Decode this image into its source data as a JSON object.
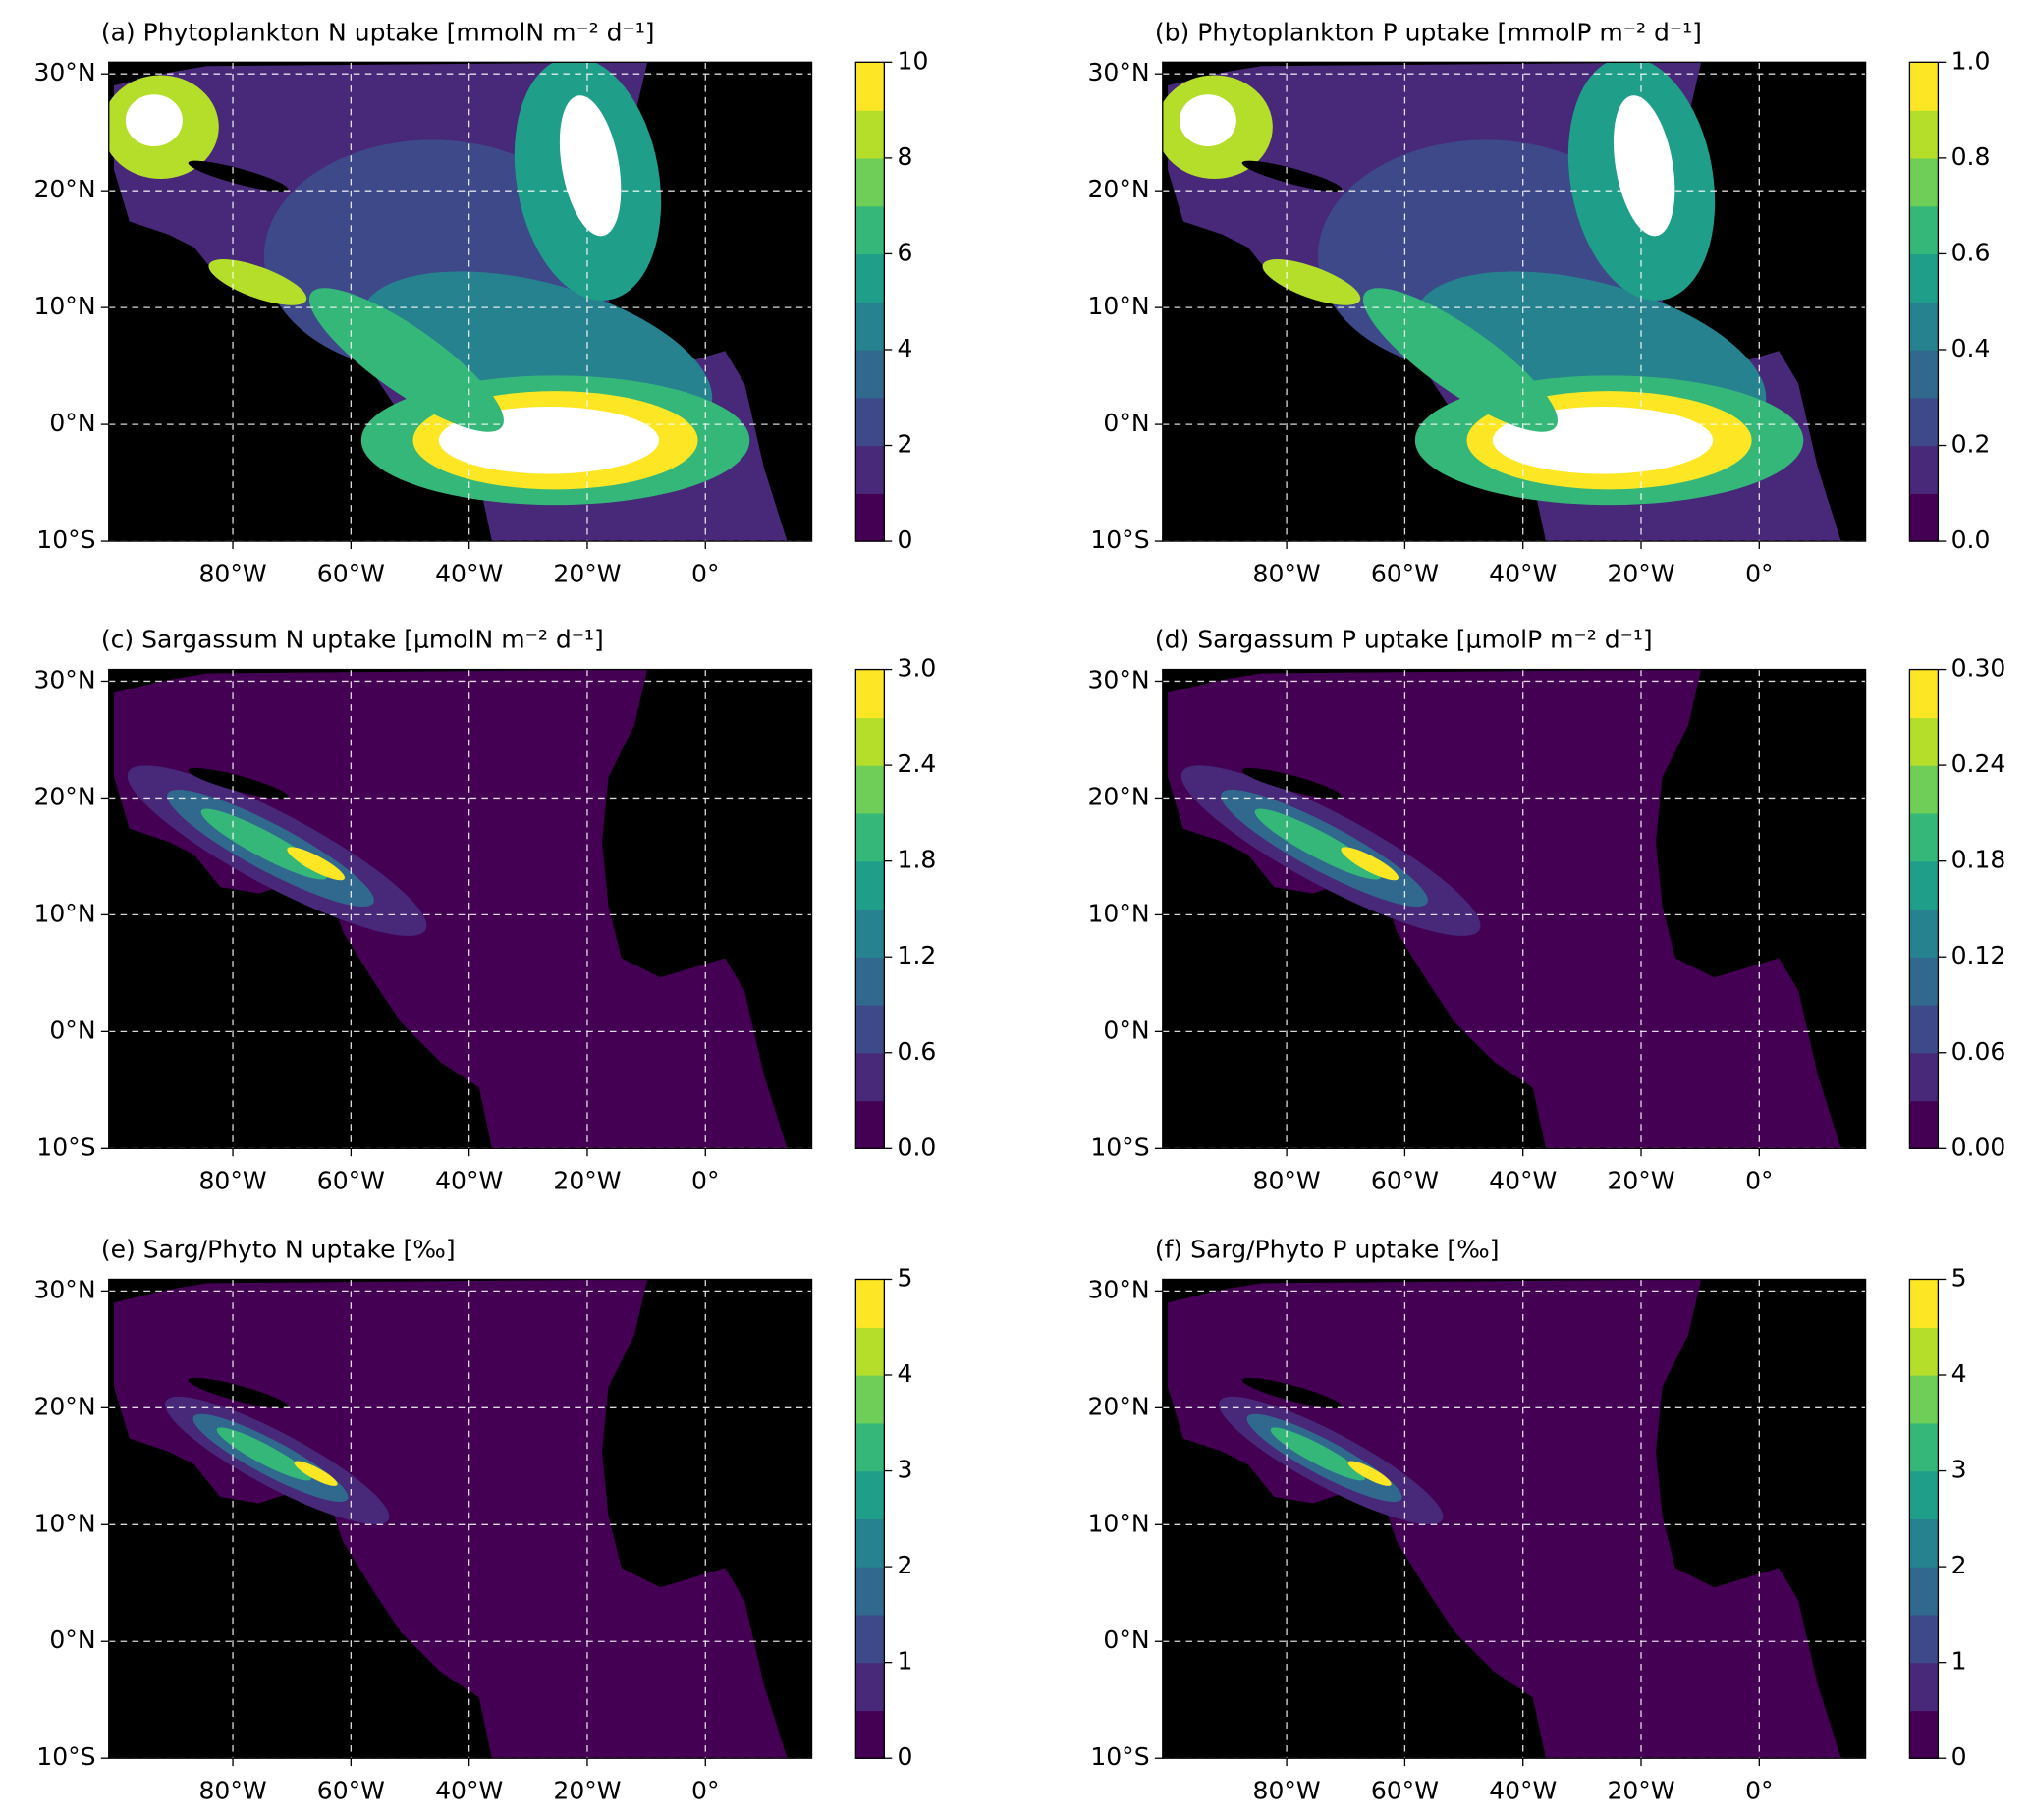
{
  "chart_data": [
    {
      "type": "map",
      "title": "(a) Phytoplankton N uptake [mmolN m⁻² d⁻¹]",
      "xlim": [
        -101,
        18
      ],
      "ylim": [
        -10,
        31
      ],
      "xticks": [
        {
          "value": -80,
          "label": "80°W"
        },
        {
          "value": -60,
          "label": "60°W"
        },
        {
          "value": -40,
          "label": "40°W"
        },
        {
          "value": -20,
          "label": "20°W"
        },
        {
          "value": 0,
          "label": "0°"
        }
      ],
      "yticks": [
        {
          "value": -10,
          "label": "10°S"
        },
        {
          "value": 0,
          "label": "0°N"
        },
        {
          "value": 10,
          "label": "10°N"
        },
        {
          "value": 20,
          "label": "20°N"
        },
        {
          "value": 30,
          "label": "30°N"
        }
      ],
      "grid": true,
      "colorbar": {
        "lim": [
          0,
          10
        ],
        "ticks": [
          0,
          2,
          4,
          6,
          8,
          10
        ]
      },
      "colors": [
        "#440154",
        "#482878",
        "#3e4989",
        "#31688e",
        "#26828e",
        "#1f9e89",
        "#35b779",
        "#6ece58",
        "#b5de2b",
        "#fde725"
      ]
    },
    {
      "type": "map",
      "title": "(b) Phytoplankton P uptake [mmolP m⁻² d⁻¹]",
      "xlim": [
        -101,
        18
      ],
      "ylim": [
        -10,
        31
      ],
      "xticks": [
        {
          "value": -80,
          "label": "80°W"
        },
        {
          "value": -60,
          "label": "60°W"
        },
        {
          "value": -40,
          "label": "40°W"
        },
        {
          "value": -20,
          "label": "20°W"
        },
        {
          "value": 0,
          "label": "0°"
        }
      ],
      "yticks": [
        {
          "value": -10,
          "label": "10°S"
        },
        {
          "value": 0,
          "label": "0°N"
        },
        {
          "value": 10,
          "label": "10°N"
        },
        {
          "value": 20,
          "label": "20°N"
        },
        {
          "value": 30,
          "label": "30°N"
        }
      ],
      "grid": true,
      "colorbar": {
        "lim": [
          0,
          1
        ],
        "ticks": [
          {
            "value": 0,
            "label": "0.0"
          },
          0.2,
          0.4,
          0.6,
          0.8,
          {
            "value": 1,
            "label": "1.0"
          }
        ]
      },
      "colors": [
        "#440154",
        "#482878",
        "#3e4989",
        "#31688e",
        "#26828e",
        "#1f9e89",
        "#35b779",
        "#6ece58",
        "#b5de2b",
        "#fde725"
      ]
    },
    {
      "type": "map",
      "title": "(c) Sargassum N uptake [μmolN m⁻² d⁻¹]",
      "xlim": [
        -101,
        18
      ],
      "ylim": [
        -10,
        31
      ],
      "xticks": [
        {
          "value": -80,
          "label": "80°W"
        },
        {
          "value": -60,
          "label": "60°W"
        },
        {
          "value": -40,
          "label": "40°W"
        },
        {
          "value": -20,
          "label": "20°W"
        },
        {
          "value": 0,
          "label": "0°"
        }
      ],
      "yticks": [
        {
          "value": -10,
          "label": "10°S"
        },
        {
          "value": 0,
          "label": "0°N"
        },
        {
          "value": 10,
          "label": "10°N"
        },
        {
          "value": 20,
          "label": "20°N"
        },
        {
          "value": 30,
          "label": "30°N"
        }
      ],
      "grid": true,
      "colorbar": {
        "lim": [
          0,
          3
        ],
        "ticks": [
          {
            "value": 0,
            "label": "0.0"
          },
          0.6,
          1.2,
          1.8,
          2.4,
          {
            "value": 3,
            "label": "3.0"
          }
        ]
      },
      "colors": [
        "#440154",
        "#482878",
        "#3e4989",
        "#31688e",
        "#26828e",
        "#1f9e89",
        "#35b779",
        "#6ece58",
        "#b5de2b",
        "#fde725"
      ]
    },
    {
      "type": "map",
      "title": "(d) Sargassum P uptake [μmolP m⁻² d⁻¹]",
      "xlim": [
        -101,
        18
      ],
      "ylim": [
        -10,
        31
      ],
      "xticks": [
        {
          "value": -80,
          "label": "80°W"
        },
        {
          "value": -60,
          "label": "60°W"
        },
        {
          "value": -40,
          "label": "40°W"
        },
        {
          "value": -20,
          "label": "20°W"
        },
        {
          "value": 0,
          "label": "0°"
        }
      ],
      "yticks": [
        {
          "value": -10,
          "label": "10°S"
        },
        {
          "value": 0,
          "label": "0°N"
        },
        {
          "value": 10,
          "label": "10°N"
        },
        {
          "value": 20,
          "label": "20°N"
        },
        {
          "value": 30,
          "label": "30°N"
        }
      ],
      "grid": true,
      "colorbar": {
        "lim": [
          0,
          0.3
        ],
        "ticks": [
          {
            "value": 0,
            "label": "0.00"
          },
          0.06,
          0.12,
          0.18,
          0.24,
          {
            "value": 0.3,
            "label": "0.30"
          }
        ]
      },
      "colors": [
        "#440154",
        "#482878",
        "#3e4989",
        "#31688e",
        "#26828e",
        "#1f9e89",
        "#35b779",
        "#6ece58",
        "#b5de2b",
        "#fde725"
      ]
    },
    {
      "type": "map",
      "title": "(e) Sarg/Phyto N uptake [‰]",
      "xlim": [
        -101,
        18
      ],
      "ylim": [
        -10,
        31
      ],
      "xticks": [
        {
          "value": -80,
          "label": "80°W"
        },
        {
          "value": -60,
          "label": "60°W"
        },
        {
          "value": -40,
          "label": "40°W"
        },
        {
          "value": -20,
          "label": "20°W"
        },
        {
          "value": 0,
          "label": "0°"
        }
      ],
      "yticks": [
        {
          "value": -10,
          "label": "10°S"
        },
        {
          "value": 0,
          "label": "0°N"
        },
        {
          "value": 10,
          "label": "10°N"
        },
        {
          "value": 20,
          "label": "20°N"
        },
        {
          "value": 30,
          "label": "30°N"
        }
      ],
      "grid": true,
      "colorbar": {
        "lim": [
          0,
          5
        ],
        "ticks": [
          0,
          1,
          2,
          3,
          4,
          5
        ]
      },
      "colors": [
        "#440154",
        "#482878",
        "#3e4989",
        "#31688e",
        "#26828e",
        "#1f9e89",
        "#35b779",
        "#6ece58",
        "#b5de2b",
        "#fde725"
      ]
    },
    {
      "type": "map",
      "title": "(f) Sarg/Phyto P uptake [‰]",
      "xlim": [
        -101,
        18
      ],
      "ylim": [
        -10,
        31
      ],
      "xticks": [
        {
          "value": -80,
          "label": "80°W"
        },
        {
          "value": -60,
          "label": "60°W"
        },
        {
          "value": -40,
          "label": "40°W"
        },
        {
          "value": -20,
          "label": "20°W"
        },
        {
          "value": 0,
          "label": "0°"
        }
      ],
      "yticks": [
        {
          "value": -10,
          "label": "10°S"
        },
        {
          "value": 0,
          "label": "0°N"
        },
        {
          "value": 10,
          "label": "10°N"
        },
        {
          "value": 20,
          "label": "20°N"
        },
        {
          "value": 30,
          "label": "30°N"
        }
      ],
      "grid": true,
      "colorbar": {
        "lim": [
          0,
          5
        ],
        "ticks": [
          0,
          1,
          2,
          3,
          4,
          5
        ]
      },
      "colors": [
        "#440154",
        "#482878",
        "#3e4989",
        "#31688e",
        "#26828e",
        "#1f9e89",
        "#35b779",
        "#6ece58",
        "#b5de2b",
        "#fde725"
      ]
    }
  ]
}
